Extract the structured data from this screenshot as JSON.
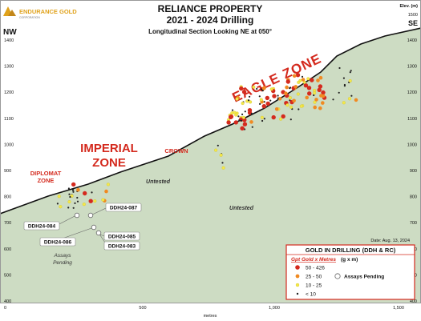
{
  "header": {
    "logo_text": "ENDURANCE GOLD",
    "logo_sub": "CORPORATION",
    "title_line1": "RELIANCE PROPERTY",
    "title_line2": "2021 - 2024 Drilling",
    "subtitle": "Longitudinal Section Looking NE at 050°"
  },
  "orientation": {
    "left": "NW",
    "right": "SE"
  },
  "elevation_axis": {
    "title_line1": "Elev. (m)",
    "title_line2": "1500",
    "ticks": [
      "1400",
      "1300",
      "1200",
      "1100",
      "1000",
      "900",
      "800",
      "700",
      "600",
      "500",
      "400"
    ]
  },
  "bottom_axis": {
    "ticks": [
      "0",
      "500",
      "1,000",
      "1,500"
    ],
    "label": "metres"
  },
  "zones": {
    "eagle": "EAGLE ZONE",
    "imperial_line1": "IMPERIAL",
    "imperial_line2": "ZONE",
    "crown": "CROWN",
    "diplomat_line1": "DIPLOMAT",
    "diplomat_line2": "ZONE"
  },
  "untested_labels": [
    "Untested",
    "Untested"
  ],
  "hole_labels": [
    "DDH24-087",
    "DDH24-084",
    "DDH24-086",
    "DDH24-085",
    "DDH24-083"
  ],
  "assays_pending_note_line1": "Assays",
  "assays_pending_note_line2": "Pending",
  "date_note": "Date: Aug. 13, 2024",
  "legend": {
    "title": "GOLD IN DRILLING (DDH & RC)",
    "subtitle_italic": "Gpt Gold x Metres",
    "subtitle_units": "(g x m)",
    "items": [
      {
        "label": "50 - 426",
        "color": "#d42a1e"
      },
      {
        "label": "25 - 50",
        "color": "#f08a22"
      },
      {
        "label": "10 - 25",
        "color": "#f3e84a"
      },
      {
        "label": "< 10",
        "color": "#222222"
      }
    ],
    "pending_label": "Assays Pending"
  },
  "colors": {
    "ground": "#cddcc3",
    "label_red": "#d42a1e",
    "legend_border": "#d42a1e"
  }
}
